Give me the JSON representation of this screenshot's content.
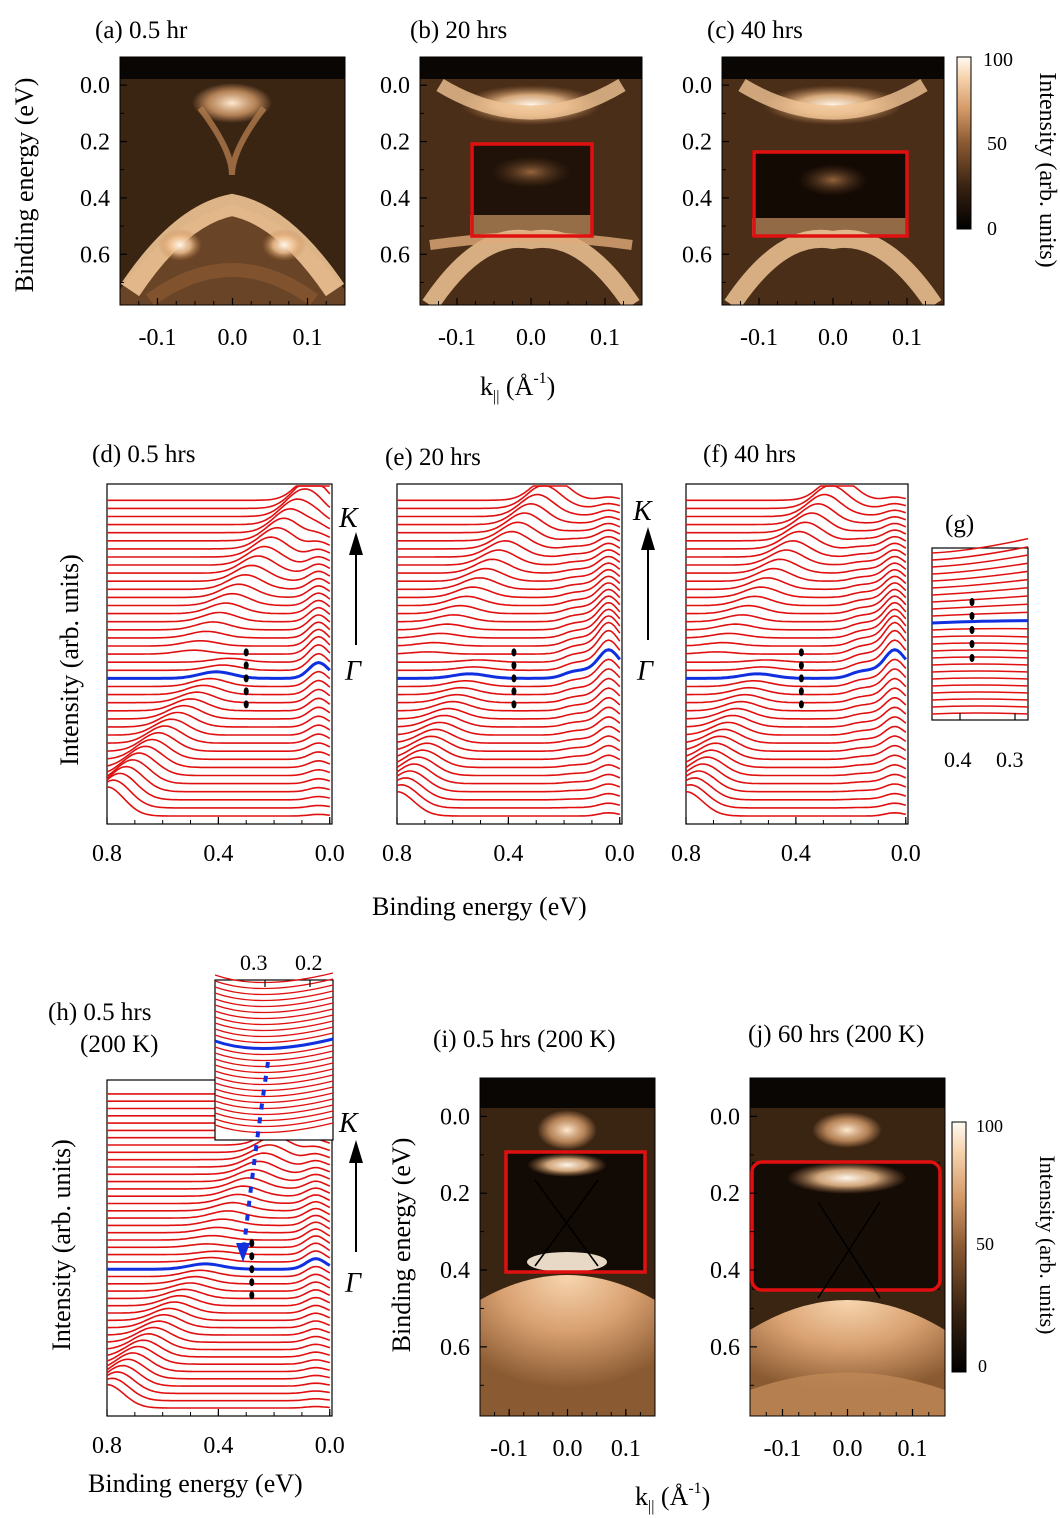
{
  "colorbar": {
    "ticks": [
      "100",
      "50",
      "0"
    ],
    "label": "Intensity (arb. units)"
  },
  "top_row": {
    "ylabel": "Binding energy (eV)",
    "xlabel_main": "k",
    "xlabel_sub": "||",
    "xlabel_unit": " (Å",
    "xlabel_exp": "-1",
    "xlabel_close": ")",
    "panels": [
      {
        "title": "(a) 0.5 hr"
      },
      {
        "title": "(b) 20 hrs"
      },
      {
        "title": "(c) 40 hrs"
      }
    ]
  },
  "mid_row": {
    "ylabel": "Intensity (arb. units)",
    "xlabel": "Binding energy (eV)",
    "panels": [
      {
        "title": "(d) 0.5 hrs"
      },
      {
        "title": "(e) 20 hrs"
      },
      {
        "title": "(f) 40 hrs"
      }
    ],
    "inset_title": "(g)",
    "inset_ticks": [
      "0.4",
      "0.3"
    ],
    "arrow_top": "K",
    "arrow_bottom": "Γ"
  },
  "bottom_row": {
    "h_title_line1": "(h) 0.5 hrs",
    "h_title_line2": "(200 K)",
    "h_ylabel": "Intensity (arb. units)",
    "h_xlabel": "Binding energy (eV)",
    "h_inset_ticks": [
      "0.3",
      "0.2"
    ],
    "arrow_top": "K",
    "arrow_bottom": "Γ",
    "i_title": "(i) 0.5 hrs (200 K)",
    "j_title": "(j) 60 hrs (200 K)",
    "ij_ylabel": "Binding energy (eV)"
  },
  "chart_data": {
    "type": "heatmap",
    "energy_ticks": [
      "0.0",
      "0.2",
      "0.4",
      "0.6"
    ],
    "k_ticks": [
      "-0.1",
      "0.0",
      "0.1"
    ],
    "edc_ticks": [
      "0.8",
      "0.4",
      "0.0"
    ],
    "colormap": [
      "#000000",
      "#3a2312",
      "#8b5a32",
      "#d49a68",
      "#f6d3ad",
      "#fffaf2"
    ]
  }
}
